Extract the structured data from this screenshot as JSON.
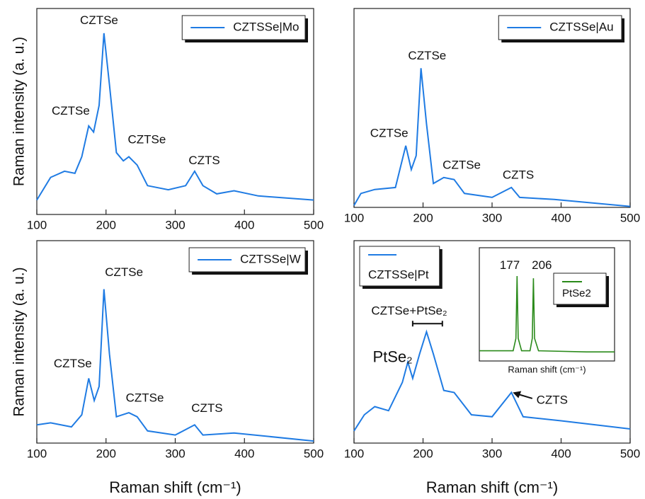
{
  "chart_data": [
    {
      "type": "line",
      "ylabel": "Raman intensity (a. u.)",
      "xlim": [
        100,
        500
      ],
      "xticks": [
        100,
        200,
        300,
        400,
        500
      ],
      "ylim": [
        0,
        100
      ],
      "legend": "upper right",
      "x": [
        100,
        120,
        140,
        155,
        165,
        175,
        182,
        190,
        197,
        205,
        215,
        225,
        233,
        245,
        260,
        290,
        315,
        328,
        340,
        360,
        385,
        420,
        500
      ],
      "series": [
        {
          "name": "CZTSSe|Mo",
          "color": "#1f7be3",
          "values": [
            7,
            18,
            21,
            20,
            28,
            43,
            40,
            53,
            88,
            63,
            30,
            26,
            28,
            24,
            14,
            12,
            14,
            21,
            14,
            10,
            11.5,
            9,
            7
          ]
        }
      ],
      "annotations": [
        {
          "text": "CZTSe",
          "x": 190,
          "y": 94
        },
        {
          "text": "CZTSe",
          "x": 149,
          "y": 50
        },
        {
          "text": "CZTSe",
          "x": 259,
          "y": 36
        },
        {
          "text": "CZTS",
          "x": 342,
          "y": 26
        }
      ]
    },
    {
      "type": "line",
      "xlim": [
        100,
        500
      ],
      "xticks": [
        100,
        200,
        300,
        400,
        500
      ],
      "ylim": [
        0,
        100
      ],
      "legend": "upper right",
      "x": [
        100,
        110,
        130,
        160,
        175,
        183,
        190,
        197,
        205,
        215,
        230,
        245,
        260,
        300,
        328,
        340,
        390,
        500
      ],
      "series": [
        {
          "name": "CZTSSe|Au",
          "color": "#1f7be3",
          "values": [
            1,
            7,
            9,
            10,
            31,
            19,
            26,
            70,
            42,
            12,
            15,
            14,
            7,
            5,
            10,
            5,
            4,
            0.5
          ]
        }
      ],
      "annotations": [
        {
          "text": "CZTSe",
          "x": 206,
          "y": 76
        },
        {
          "text": "CZTSe",
          "x": 151,
          "y": 37
        },
        {
          "text": "CZTSe",
          "x": 256,
          "y": 21
        },
        {
          "text": "CZTS",
          "x": 338,
          "y": 16
        }
      ]
    },
    {
      "type": "line",
      "ylabel": "Raman intensity (a. u.)",
      "xlabel": "Raman shift (cm⁻¹)",
      "xlim": [
        100,
        500
      ],
      "xticks": [
        100,
        200,
        300,
        400,
        500
      ],
      "ylim": [
        0,
        100
      ],
      "legend": "upper right",
      "x": [
        100,
        120,
        150,
        165,
        175,
        183,
        190,
        197,
        205,
        215,
        233,
        245,
        260,
        300,
        328,
        340,
        385,
        500
      ],
      "series": [
        {
          "name": "CZTSSe|W",
          "color": "#1f7be3",
          "values": [
            9,
            10,
            8,
            14,
            32,
            21,
            28,
            76,
            44,
            13,
            15,
            13,
            6,
            4,
            9,
            4,
            5,
            1
          ]
        }
      ],
      "annotations": [
        {
          "text": "CZTSe",
          "x": 226,
          "y": 84
        },
        {
          "text": "CZTSe",
          "x": 152,
          "y": 39
        },
        {
          "text": "CZTSe",
          "x": 256,
          "y": 22
        },
        {
          "text": "CZTS",
          "x": 346,
          "y": 17
        }
      ]
    },
    {
      "type": "line",
      "xlabel": "Raman shift (cm⁻¹)",
      "xlim": [
        100,
        500
      ],
      "xticks": [
        100,
        200,
        300,
        400,
        500
      ],
      "ylim": [
        0,
        100
      ],
      "legend": "upper left",
      "x": [
        100,
        115,
        130,
        150,
        170,
        178,
        185,
        195,
        205,
        215,
        230,
        245,
        270,
        300,
        328,
        345,
        400,
        450,
        500
      ],
      "series": [
        {
          "name": "CZTSSe|Pt",
          "color": "#1f7be3",
          "values": [
            6,
            14,
            18,
            16,
            30,
            40,
            32,
            44,
            55,
            44,
            26,
            25,
            14,
            13,
            25,
            13,
            11,
            9,
            7
          ]
        }
      ],
      "annotations": [
        {
          "text": "CZTSe+PtSe₂",
          "x": 180,
          "y": 65,
          "span": [
            185,
            228
          ],
          "span_y": 59
        },
        {
          "text": "PtSe₂",
          "x": 156,
          "y": 42
        },
        {
          "text": "CZTS",
          "x": 387,
          "y": 21,
          "arrow_to": [
            330,
            25
          ]
        }
      ]
    },
    {
      "type": "line",
      "xlabel": "Raman shift (cm⁻¹)",
      "xlim": [
        110,
        350
      ],
      "ylim": [
        0,
        100
      ],
      "legend": "upper right",
      "x": [
        110,
        170,
        175,
        177,
        179,
        185,
        200,
        204,
        206,
        208,
        215,
        300,
        350
      ],
      "series": [
        {
          "name": "PtSe2",
          "color": "#2a8a1a",
          "values": [
            9,
            9,
            20,
            75,
            20,
            9,
            9,
            20,
            73,
            20,
            9,
            8,
            8
          ]
        }
      ],
      "annotations": [
        {
          "text": "177",
          "x": 164,
          "y": 84
        },
        {
          "text": "206",
          "x": 221,
          "y": 84
        }
      ]
    }
  ]
}
